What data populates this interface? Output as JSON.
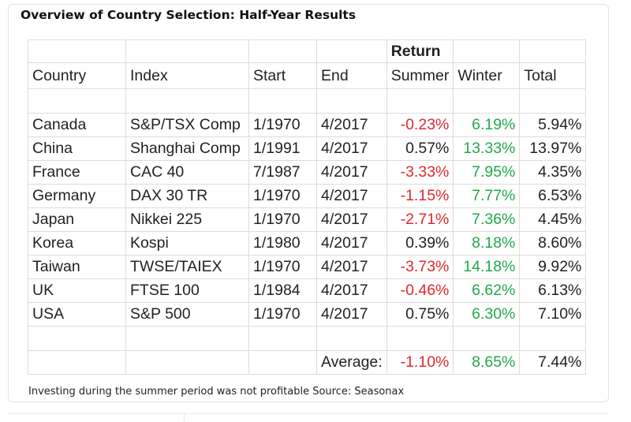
{
  "title": "Overview of Country Selection: Half-Year Results",
  "group_header": "Return",
  "columns": [
    "Country",
    "Index",
    "Start",
    "End",
    "Summer",
    "Winter",
    "Total"
  ],
  "rows": [
    {
      "country": "Canada",
      "index": "S&P/TSX Comp",
      "start": "1/1970",
      "end": "4/2017",
      "summer": "-0.23%",
      "winter": "6.19%",
      "total": "5.94%"
    },
    {
      "country": "China",
      "index": "Shanghai Comp",
      "start": "1/1991",
      "end": "4/2017",
      "summer": "0.57%",
      "winter": "13.33%",
      "total": "13.97%"
    },
    {
      "country": "France",
      "index": "CAC 40",
      "start": "7/1987",
      "end": "4/2017",
      "summer": "-3.33%",
      "winter": "7.95%",
      "total": "4.35%"
    },
    {
      "country": "Germany",
      "index": "DAX 30 TR",
      "start": "1/1970",
      "end": "4/2017",
      "summer": "-1.15%",
      "winter": "7.77%",
      "total": "6.53%"
    },
    {
      "country": "Japan",
      "index": "Nikkei 225",
      "start": "1/1970",
      "end": "4/2017",
      "summer": "-2.71%",
      "winter": "7.36%",
      "total": "4.45%"
    },
    {
      "country": "Korea",
      "index": "Kospi",
      "start": "1/1980",
      "end": "4/2017",
      "summer": "0.39%",
      "winter": "8.18%",
      "total": "8.60%"
    },
    {
      "country": "Taiwan",
      "index": "TWSE/TAIEX",
      "start": "1/1970",
      "end": "4/2017",
      "summer": "-3.73%",
      "winter": "14.18%",
      "total": "9.92%"
    },
    {
      "country": "UK",
      "index": "FTSE 100",
      "start": "1/1984",
      "end": "4/2017",
      "summer": "-0.46%",
      "winter": "6.62%",
      "total": "6.13%"
    },
    {
      "country": "USA",
      "index": "S&P 500",
      "start": "1/1970",
      "end": "4/2017",
      "summer": "0.75%",
      "winter": "6.30%",
      "total": "7.10%"
    }
  ],
  "average": {
    "label": "Average:",
    "summer": "-1.10%",
    "winter": "8.65%",
    "total": "7.44%"
  },
  "caption": "Investing during the summer period was not profitable Source: Seasonax",
  "colors": {
    "negative": "#e0282e",
    "positive": "#22a84a",
    "gridline": "#dcdcdc"
  }
}
